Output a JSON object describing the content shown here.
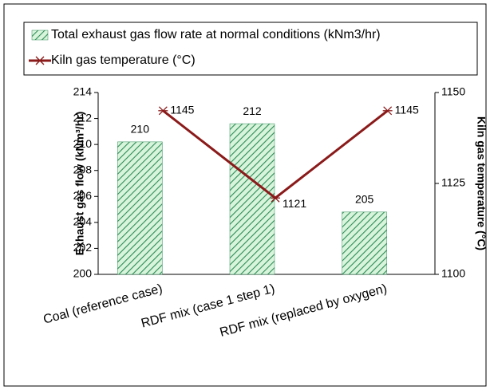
{
  "chart_data": {
    "type": "bar_line",
    "categories": [
      "Coal (reference case)",
      "RDF mix (case 1 step 1)",
      "RDF mix (replaced by oxygen)"
    ],
    "series": [
      {
        "name": "Total exhaust gas flow rate at normal conditions (kNm3/hr)",
        "type": "bar",
        "color": "#2e8b57",
        "values": [
          210.2,
          211.6,
          204.8
        ],
        "value_labels": [
          "210",
          "212",
          "205"
        ]
      },
      {
        "name": "Kiln gas temperature (°C)",
        "type": "line",
        "axis": "y2",
        "color": "#8b1a1a",
        "values": [
          1145,
          1121,
          1145
        ],
        "value_labels": [
          "1145",
          "1121",
          "1145"
        ]
      }
    ],
    "ylabel": "Exhaust gas flow (kNm³/hr)",
    "y2label": "Kiln gas temperature (°C)",
    "ylim": [
      200,
      214
    ],
    "yticks": [
      200,
      202,
      204,
      206,
      208,
      210,
      212,
      214
    ],
    "y2lim": [
      1100,
      1150
    ],
    "y2ticks": [
      1100,
      1125,
      1150
    ],
    "grid": false,
    "legend": "top"
  }
}
